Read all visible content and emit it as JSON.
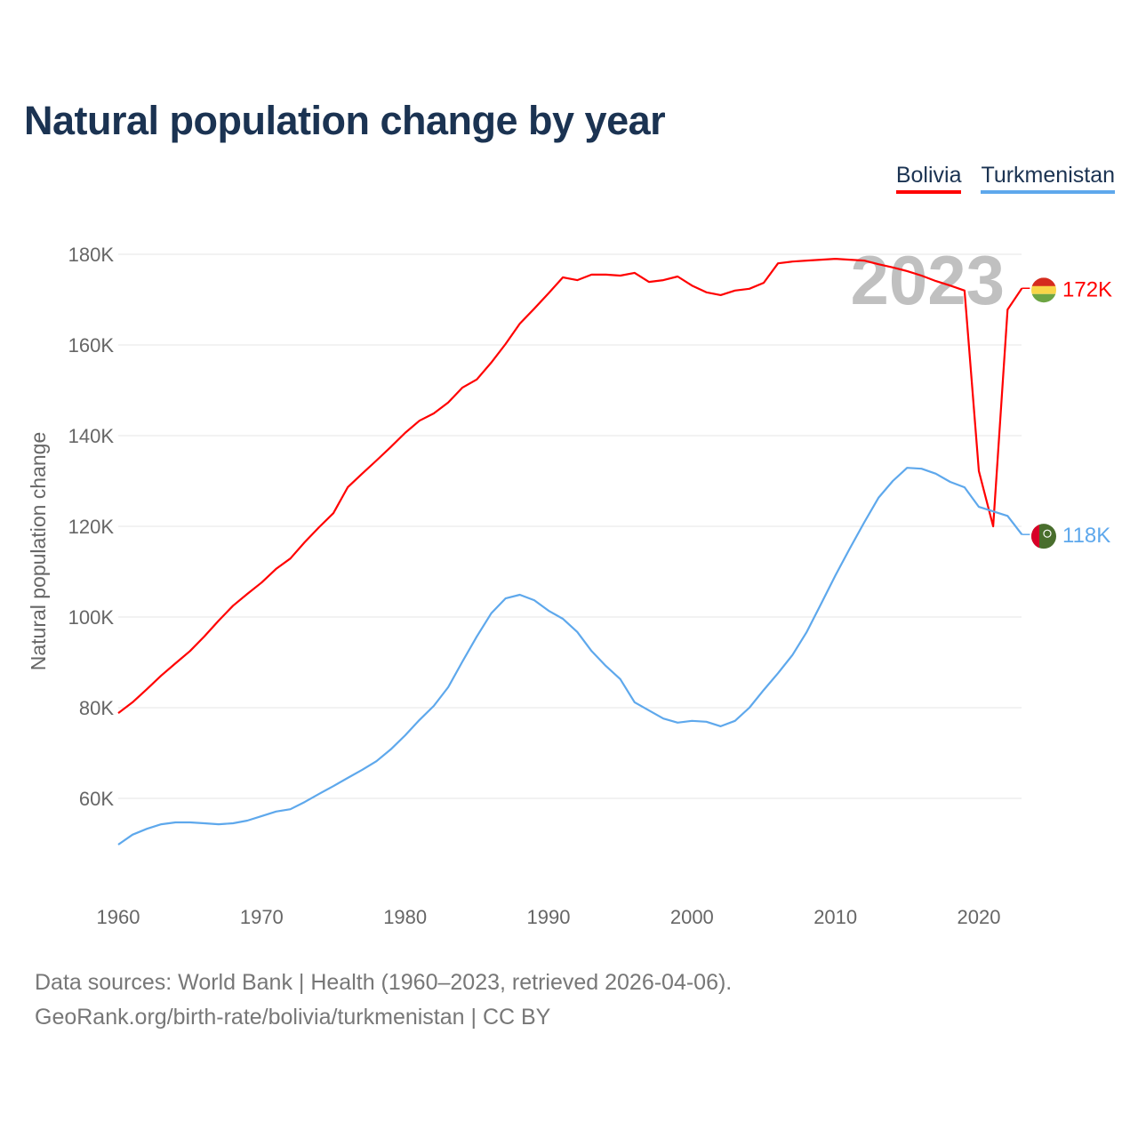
{
  "chart_data": {
    "type": "line",
    "title": "Natural population change by year",
    "xlabel": "",
    "ylabel": "Natural population change",
    "xlim": [
      1960,
      2023
    ],
    "ylim": [
      40000,
      190000
    ],
    "x_ticks": [
      1960,
      1970,
      1980,
      1990,
      2000,
      2010,
      2020
    ],
    "x_tick_labels": [
      "1960",
      "1970",
      "1980",
      "1990",
      "2000",
      "2010",
      "2020"
    ],
    "y_ticks": [
      60000,
      80000,
      100000,
      120000,
      140000,
      160000,
      180000
    ],
    "y_tick_labels": [
      "60K",
      "80K",
      "100K",
      "120K",
      "140K",
      "160K",
      "180K"
    ],
    "grid": true,
    "legend_position": "top-right",
    "year_watermark": "2023",
    "x_start": 1960,
    "series": [
      {
        "name": "Bolivia",
        "color": "#ff0000",
        "end_label": "172K",
        "values": [
          78800,
          81200,
          84100,
          87100,
          89800,
          92500,
          95700,
          99200,
          102500,
          105100,
          107600,
          110600,
          112900,
          116500,
          119800,
          122900,
          128600,
          131600,
          134500,
          137500,
          140600,
          143300,
          144900,
          147300,
          150600,
          152400,
          156100,
          160200,
          164700,
          168000,
          171400,
          174900,
          174300,
          175500,
          175500,
          175300,
          175900,
          173900,
          174300,
          175100,
          173100,
          171600,
          171000,
          172000,
          172400,
          173700,
          178000,
          178400,
          178600,
          178800,
          179000,
          178800,
          178600,
          177800,
          177100,
          176300,
          175300,
          174100,
          173100,
          172000,
          132200,
          120000,
          167800,
          172500
        ]
      },
      {
        "name": "Turkmenistan",
        "color": "#5ea8ec",
        "end_label": "118K",
        "values": [
          49800,
          52000,
          53300,
          54300,
          54700,
          54700,
          54500,
          54300,
          54500,
          55100,
          56100,
          57100,
          57600,
          59200,
          61000,
          62700,
          64500,
          66300,
          68200,
          70800,
          73900,
          77300,
          80400,
          84500,
          90200,
          95700,
          100800,
          104100,
          104900,
          103700,
          101400,
          99600,
          96700,
          92500,
          89200,
          86300,
          81200,
          79400,
          77600,
          76700,
          77100,
          76900,
          75900,
          77100,
          80000,
          83900,
          87600,
          91600,
          96700,
          102900,
          109200,
          115100,
          120800,
          126300,
          130000,
          132900,
          132700,
          131600,
          129800,
          128600,
          124300,
          123300,
          122300,
          118200
        ]
      }
    ]
  },
  "footer": {
    "line1": "Data sources: World Bank | Health (1960–2023, retrieved 2026-04-06).",
    "line2": "GeoRank.org/birth-rate/bolivia/turkmenistan | CC BY"
  }
}
